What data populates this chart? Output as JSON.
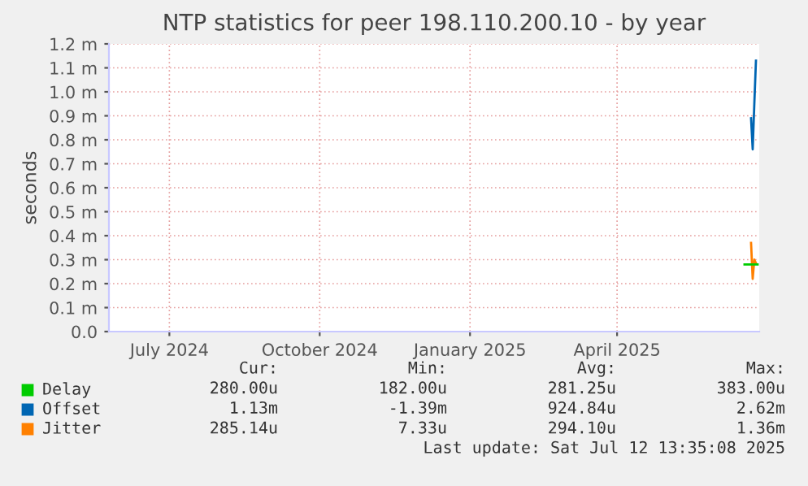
{
  "chart_data": {
    "type": "line",
    "title": "NTP statistics for peer 198.110.200.10 - by year",
    "ylabel": "seconds",
    "xlim": [
      "2024-06-09",
      "2025-07-12"
    ],
    "xticks": [
      {
        "value": "2024-07-16",
        "label": "July 2024"
      },
      {
        "value": "2024-10-16",
        "label": "October 2024"
      },
      {
        "value": "2025-01-16",
        "label": "January 2025"
      },
      {
        "value": "2025-04-16",
        "label": "April 2025"
      }
    ],
    "ylim": [
      0,
      1.2
    ],
    "yticks": [
      {
        "value": 0,
        "label": "0.0"
      },
      {
        "value": 0.1,
        "label": "0.1 m"
      },
      {
        "value": 0.2,
        "label": "0.2 m"
      },
      {
        "value": 0.3,
        "label": "0.3 m"
      },
      {
        "value": 0.4,
        "label": "0.4 m"
      },
      {
        "value": 0.5,
        "label": "0.5 m"
      },
      {
        "value": 0.6,
        "label": "0.6 m"
      },
      {
        "value": 0.7,
        "label": "0.7 m"
      },
      {
        "value": 0.8,
        "label": "0.8 m"
      },
      {
        "value": 0.9,
        "label": "0.9 m"
      },
      {
        "value": 1.0,
        "label": "1.0 m"
      },
      {
        "value": 1.1,
        "label": "1.1 m"
      },
      {
        "value": 1.2,
        "label": "1.2 m"
      }
    ],
    "grid": true,
    "legend": "bottom",
    "series": [
      {
        "name": "Delay",
        "color": "#00cc00",
        "x": [
          "2025-07-03",
          "2025-07-11"
        ],
        "values": [
          0.28,
          0.28
        ]
      },
      {
        "name": "Offset",
        "color": "#0066b3",
        "x": [
          "2025-07-07",
          "2025-07-08",
          "2025-07-09",
          "2025-07-10"
        ],
        "values": [
          0.89,
          0.76,
          0.95,
          1.13
        ]
      },
      {
        "name": "Jitter",
        "color": "#ff8000",
        "x": [
          "2025-07-07",
          "2025-07-08",
          "2025-07-09",
          "2025-07-10"
        ],
        "values": [
          0.37,
          0.22,
          0.3,
          0.285
        ]
      }
    ],
    "annotations": [
      "Cur:",
      "Min:",
      "Avg:",
      "Max:",
      "280.00u",
      "182.00u",
      "281.25u",
      "383.00u",
      "1.13m",
      "-1.39m",
      "924.84u",
      "2.62m",
      "285.14u",
      "7.33u",
      "294.10u",
      "1.36m",
      "Last update: Sat Jul 12 13:35:08 2025"
    ]
  }
}
